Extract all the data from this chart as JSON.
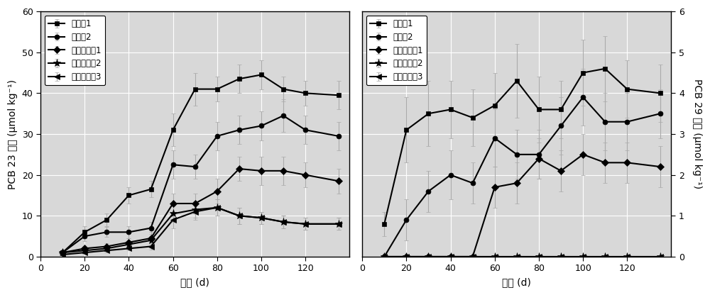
{
  "left": {
    "ylabel": "PCB 23 浓度 (μmol kg⁻¹)",
    "xlabel": "时间 (d)",
    "ylim": [
      0,
      60
    ],
    "yticks": [
      0,
      10,
      20,
      30,
      40,
      50,
      60
    ],
    "xlim": [
      0,
      140
    ],
    "xticks": [
      0,
      20,
      40,
      60,
      80,
      100,
      120
    ],
    "series": [
      {
        "label": "实施例1",
        "marker": "s",
        "x": [
          10,
          20,
          30,
          40,
          50,
          60,
          70,
          80,
          90,
          100,
          110,
          120,
          135
        ],
        "y": [
          1.0,
          6.0,
          9.0,
          15.0,
          16.5,
          31.0,
          41.0,
          41.0,
          43.5,
          44.5,
          41.0,
          40.0,
          39.5
        ],
        "yerr": [
          0.5,
          1.5,
          1.5,
          2.0,
          2.0,
          4.0,
          4.0,
          3.0,
          3.5,
          3.5,
          3.0,
          3.0,
          3.5
        ]
      },
      {
        "label": "实施例2",
        "marker": "o",
        "x": [
          10,
          20,
          30,
          40,
          50,
          60,
          70,
          80,
          90,
          100,
          110,
          120,
          135
        ],
        "y": [
          1.0,
          5.0,
          6.0,
          6.0,
          7.0,
          22.5,
          22.0,
          29.5,
          31.0,
          32.0,
          34.5,
          31.0,
          29.5
        ],
        "yerr": [
          0.5,
          1.2,
          1.2,
          1.5,
          1.5,
          3.5,
          3.0,
          3.5,
          3.5,
          3.5,
          4.0,
          3.5,
          3.5
        ]
      },
      {
        "label": "对比实施例1",
        "marker": "D",
        "x": [
          10,
          20,
          30,
          40,
          50,
          60,
          70,
          80,
          90,
          100,
          110,
          120,
          135
        ],
        "y": [
          1.0,
          2.0,
          2.5,
          3.5,
          4.5,
          13.0,
          13.0,
          16.0,
          21.5,
          21.0,
          21.0,
          20.0,
          18.5
        ],
        "yerr": [
          0.5,
          0.5,
          0.8,
          1.0,
          1.5,
          2.5,
          2.5,
          3.0,
          3.0,
          3.5,
          3.5,
          3.0,
          3.0
        ]
      },
      {
        "label": "对比实施例2",
        "marker": "*",
        "x": [
          10,
          20,
          30,
          40,
          50,
          60,
          70,
          80,
          90,
          100,
          110,
          120,
          135
        ],
        "y": [
          1.0,
          1.5,
          2.0,
          3.0,
          4.0,
          10.5,
          11.5,
          12.0,
          10.0,
          9.5,
          8.5,
          8.0,
          8.0
        ],
        "yerr": [
          0.5,
          0.5,
          0.5,
          0.8,
          1.0,
          2.0,
          2.0,
          2.0,
          2.0,
          1.5,
          1.5,
          1.5,
          1.5
        ]
      },
      {
        "label": "对比实施例3",
        "marker": "<",
        "x": [
          10,
          20,
          30,
          40,
          50,
          60,
          70,
          80,
          90,
          100,
          110,
          120,
          135
        ],
        "y": [
          0.5,
          1.0,
          1.5,
          2.0,
          2.5,
          9.0,
          11.0,
          12.0,
          10.0,
          9.5,
          8.5,
          8.0,
          8.0
        ],
        "yerr": [
          0.3,
          0.3,
          0.5,
          0.5,
          0.8,
          2.0,
          2.0,
          2.0,
          2.0,
          1.5,
          1.5,
          1.5,
          1.5
        ]
      }
    ]
  },
  "right": {
    "ylabel": "PCB 29 浓度 (μmol kg⁻¹)",
    "xlabel": "时间 (d)",
    "ylim": [
      0,
      6
    ],
    "yticks": [
      0,
      1,
      2,
      3,
      4,
      5,
      6
    ],
    "xlim": [
      0,
      140
    ],
    "xticks": [
      0,
      20,
      40,
      60,
      80,
      100,
      120
    ],
    "series": [
      {
        "label": "实施例1",
        "marker": "s",
        "x": [
          10,
          20,
          30,
          40,
          50,
          60,
          70,
          80,
          90,
          100,
          110,
          120,
          135
        ],
        "y": [
          0.8,
          3.1,
          3.5,
          3.6,
          3.4,
          3.7,
          4.3,
          3.6,
          3.6,
          4.5,
          4.6,
          4.1,
          4.0
        ],
        "yerr": [
          0.3,
          0.8,
          0.8,
          0.7,
          0.7,
          0.8,
          0.9,
          0.8,
          0.7,
          0.8,
          0.8,
          0.7,
          0.7
        ]
      },
      {
        "label": "实施例2",
        "marker": "o",
        "x": [
          10,
          20,
          30,
          40,
          50,
          60,
          70,
          80,
          90,
          100,
          110,
          120,
          135
        ],
        "y": [
          0.0,
          0.9,
          1.6,
          2.0,
          1.8,
          2.9,
          2.5,
          2.5,
          3.2,
          3.9,
          3.3,
          3.3,
          3.5
        ],
        "yerr": [
          0.0,
          0.5,
          0.5,
          0.6,
          0.5,
          0.7,
          0.6,
          0.6,
          0.7,
          0.7,
          0.7,
          0.7,
          0.6
        ]
      },
      {
        "label": "对比实施例1",
        "marker": "D",
        "x": [
          10,
          20,
          30,
          40,
          50,
          60,
          70,
          80,
          90,
          100,
          110,
          120,
          135
        ],
        "y": [
          0.0,
          0.0,
          0.0,
          0.0,
          0.0,
          1.7,
          1.8,
          2.4,
          2.1,
          2.5,
          2.3,
          2.3,
          2.2
        ],
        "yerr": [
          0.0,
          0.0,
          0.0,
          0.0,
          0.0,
          0.5,
          0.5,
          0.5,
          0.5,
          0.5,
          0.5,
          0.5,
          0.5
        ]
      },
      {
        "label": "对比实施例2",
        "marker": "*",
        "x": [
          10,
          20,
          30,
          40,
          50,
          60,
          70,
          80,
          90,
          100,
          110,
          120,
          135
        ],
        "y": [
          0.0,
          0.0,
          0.0,
          0.0,
          0.0,
          0.0,
          0.0,
          0.0,
          0.0,
          0.0,
          0.0,
          0.0,
          0.0
        ],
        "yerr": [
          0.0,
          0.0,
          0.0,
          0.0,
          0.0,
          0.0,
          0.0,
          0.0,
          0.0,
          0.0,
          0.0,
          0.0,
          0.0
        ]
      },
      {
        "label": "对比实施例3",
        "marker": "<",
        "x": [
          10,
          20,
          30,
          40,
          50,
          60,
          70,
          80,
          90,
          100,
          110,
          120,
          135
        ],
        "y": [
          0.0,
          0.0,
          0.0,
          0.0,
          0.0,
          0.0,
          0.0,
          0.0,
          0.0,
          0.0,
          0.0,
          0.0,
          0.0
        ],
        "yerr": [
          0.0,
          0.0,
          0.0,
          0.0,
          0.0,
          0.0,
          0.0,
          0.0,
          0.0,
          0.0,
          0.0,
          0.0,
          0.0
        ]
      }
    ]
  },
  "line_color": "#000000",
  "err_color": "#aaaaaa",
  "linewidth": 1.5,
  "background_color": "#d8d8d8",
  "grid_color": "#ffffff",
  "font_size_label": 10,
  "font_size_tick": 9,
  "font_size_legend": 8.5
}
